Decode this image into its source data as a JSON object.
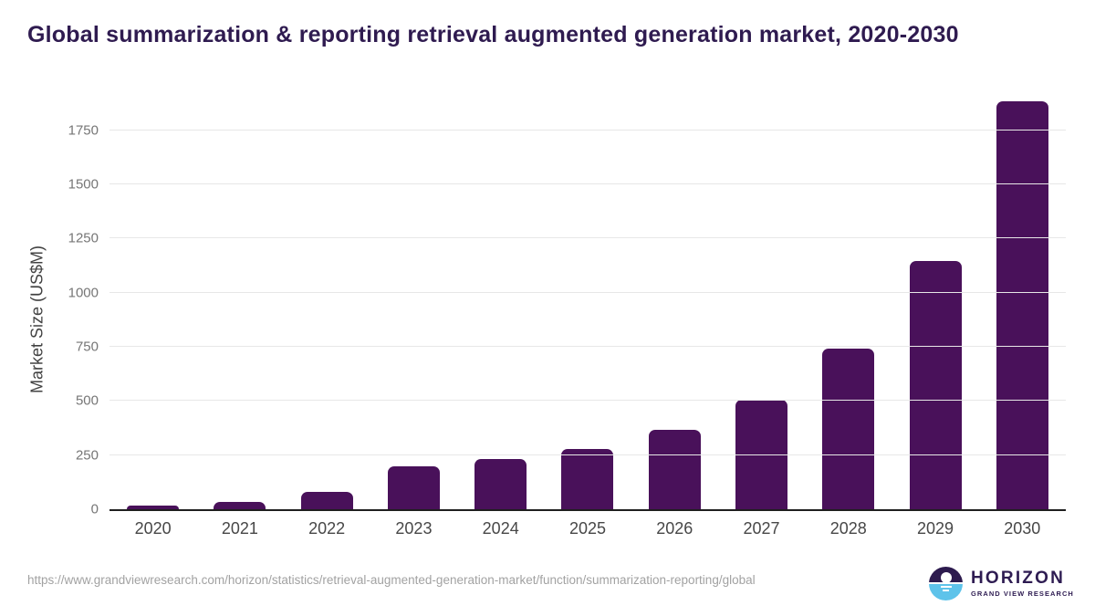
{
  "title": "Global summarization & reporting retrieval augmented generation market, 2020-2030",
  "chart_data": {
    "type": "bar",
    "title": "Global summarization & reporting retrieval augmented generation market, 2020-2030",
    "categories": [
      "2020",
      "2021",
      "2022",
      "2023",
      "2024",
      "2025",
      "2026",
      "2027",
      "2028",
      "2029",
      "2030"
    ],
    "values": [
      15,
      35,
      80,
      200,
      230,
      280,
      365,
      505,
      740,
      1145,
      1885
    ],
    "xlabel": "",
    "ylabel": "Market Size (US$M)",
    "ylim": [
      0,
      1930
    ],
    "yticks": [
      0,
      250,
      500,
      750,
      1000,
      1250,
      1500,
      1750
    ],
    "grid": "horizontal-only",
    "legend": "none",
    "bar_color": "#49115a"
  },
  "footer": {
    "source_url": "https://www.grandviewresearch.com/horizon/statistics/retrieval-augmented-generation-market/function/summarization-reporting/global"
  },
  "logo": {
    "name": "HORIZON",
    "subtitle": "GRAND VIEW RESEARCH",
    "icon": "horizon-sunset-circle-icon"
  },
  "colors": {
    "title": "#2f1b50",
    "bar": "#49115a",
    "axis_line": "#1f1f1f",
    "gridline": "#e7e7e7",
    "y_tick_label": "#767676",
    "x_tick_label": "#474747",
    "y_axis_title": "#424242",
    "url_text": "#a2a2a2",
    "logo_purple": "#2d1b4e",
    "logo_blue": "#5ec3ea",
    "background": "#ffffff"
  }
}
